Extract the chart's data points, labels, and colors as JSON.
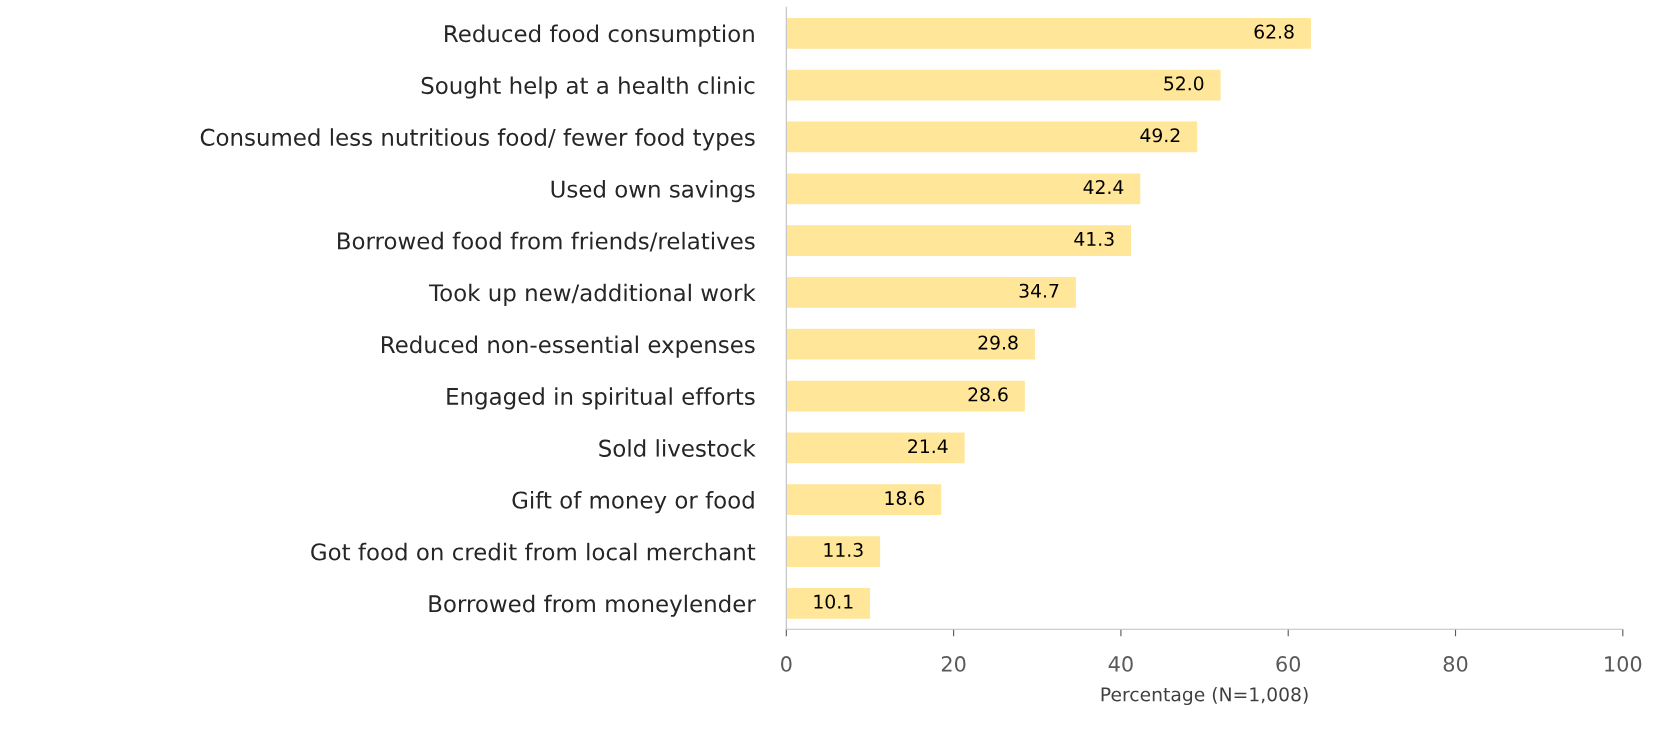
{
  "chart_data": {
    "type": "bar",
    "orientation": "horizontal",
    "xlabel": "Percentage (N=1,008)",
    "categories": [
      "Reduced food consumption",
      "Sought help at a health clinic",
      "Consumed less nutritious food/ fewer food types",
      "Used own savings",
      "Borrowed food from friends/relatives",
      "Took up new/additional work",
      "Reduced non-essential expenses",
      "Engaged in spiritual efforts",
      "Sold livestock",
      "Gift of money or food",
      "Got food on credit from local merchant",
      "Borrowed from moneylender"
    ],
    "values": [
      62.8,
      52.0,
      49.2,
      42.4,
      41.3,
      34.7,
      29.8,
      28.6,
      21.4,
      18.6,
      11.3,
      10.1
    ],
    "color": "#ffe699",
    "xlim": [
      0,
      100
    ],
    "xticks": [
      0,
      20,
      40,
      60,
      80,
      100
    ],
    "grid": false,
    "legend": false,
    "value_labels": [
      "62.8",
      "52.0",
      "49.2",
      "42.4",
      "41.3",
      "34.7",
      "29.8",
      "28.6",
      "21.4",
      "18.6",
      "11.3",
      "10.1"
    ]
  }
}
